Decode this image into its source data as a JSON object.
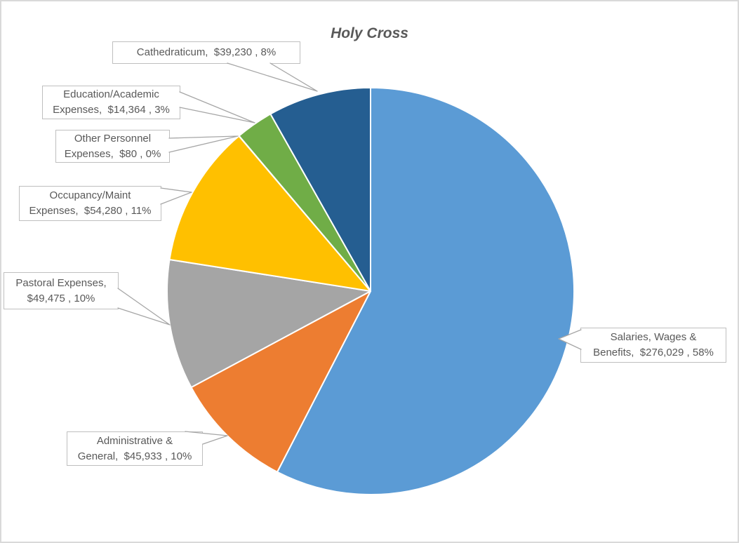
{
  "title": "Holy Cross",
  "chart_data": {
    "type": "pie",
    "title": "Holy Cross",
    "categories": [
      "Salaries, Wages & Benefits",
      "Administrative & General",
      "Pastoral Expenses",
      "Occupancy/Maint Expenses",
      "Other Personnel Expenses",
      "Education/Academic Expenses",
      "Cathedraticum"
    ],
    "values": [
      276029,
      45933,
      49475,
      54280,
      80,
      14364,
      39230
    ],
    "value_labels": [
      "$276,029",
      "$45,933",
      "$49,475",
      "$54,280",
      "$80",
      "$14,364",
      "$39,230"
    ],
    "percent_labels": [
      "58%",
      "10%",
      "10%",
      "11%",
      "0%",
      "3%",
      "8%"
    ],
    "colors": [
      "#5B9BD5",
      "#ED7D31",
      "#A5A5A5",
      "#FFC000",
      "#4472C4",
      "#70AD47",
      "#255E91"
    ],
    "start_angle_deg": 0,
    "direction": "clockwise",
    "legend": "none",
    "label_style": "callout-boxes",
    "slice_border_color": "#FFFFFF"
  },
  "labels": {
    "cathedraticum": {
      "line1": "Cathedraticum,  $39,230 , 8%"
    },
    "education": {
      "line1": "Education/Academic",
      "line2": "Expenses,  $14,364 , 3%"
    },
    "other": {
      "line1": "Other Personnel",
      "line2": "Expenses,  $80 , 0%"
    },
    "occupancy": {
      "line1": "Occupancy/Maint",
      "line2": "Expenses,  $54,280 , 11%"
    },
    "pastoral": {
      "line1": "Pastoral Expenses,",
      "line2": "$49,475 , 10%"
    },
    "administrative": {
      "line1": "Administrative &",
      "line2": "General,  $45,933 , 10%"
    },
    "salaries": {
      "line1": "Salaries, Wages &",
      "line2": "Benefits,  $276,029 , 58%"
    }
  }
}
